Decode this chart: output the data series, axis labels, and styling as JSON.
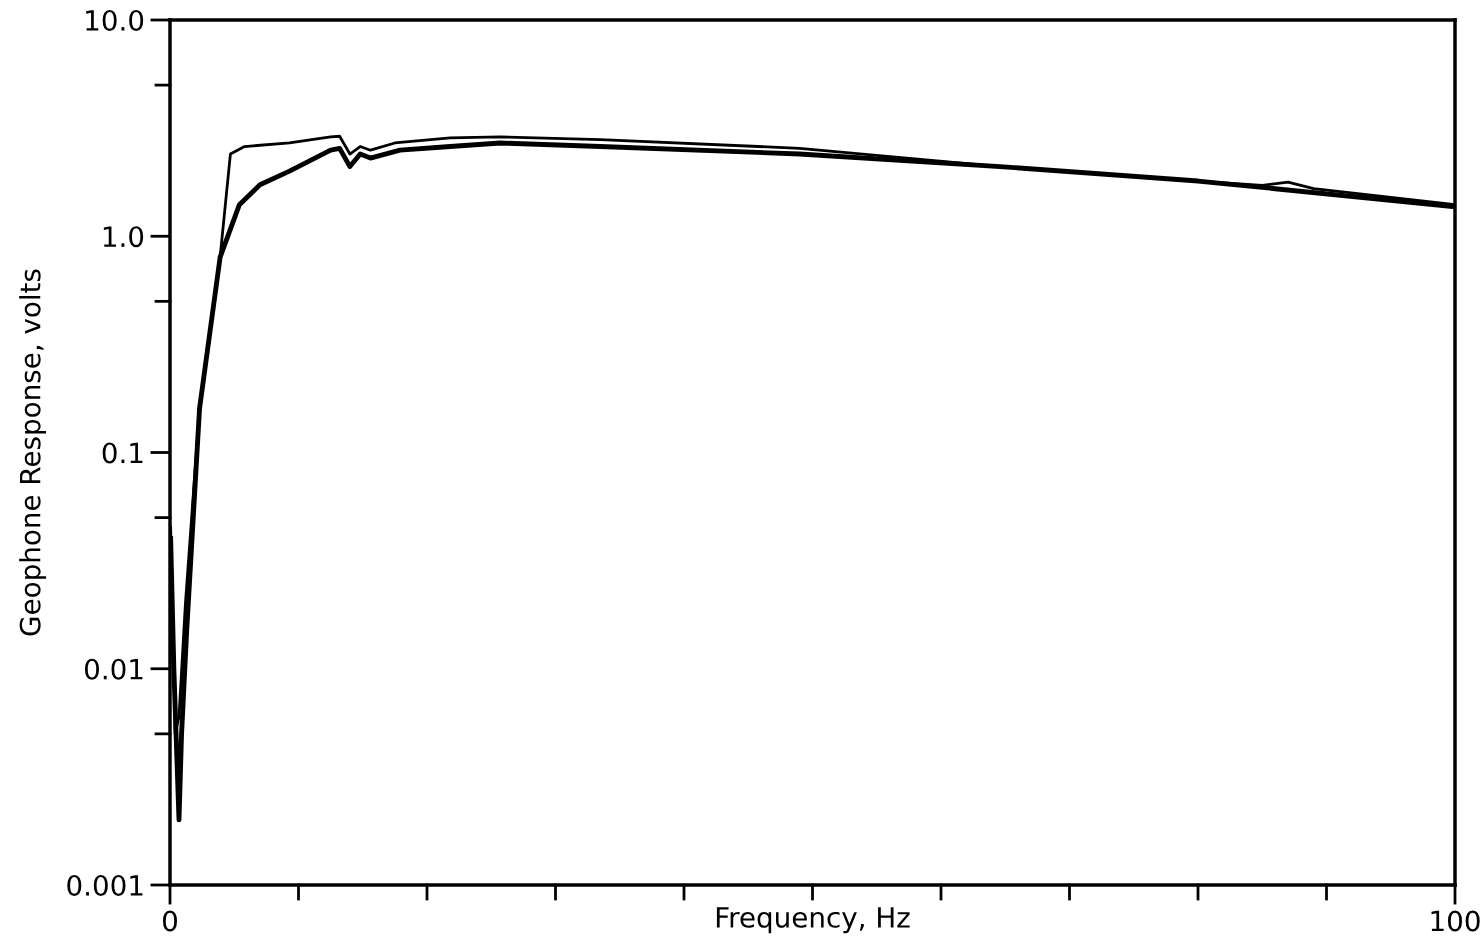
{
  "chart_data": {
    "type": "line",
    "xlabel": "Frequency, Hz",
    "ylabel": "Geophone Response, volts",
    "log": "y",
    "grid": false,
    "marker": "none",
    "line_style": "solid",
    "xlim": [
      0,
      100
    ],
    "xticks": [
      0,
      {
        "value": 10,
        "label": null
      },
      {
        "value": 20,
        "label": null
      },
      {
        "value": 30,
        "label": null
      },
      {
        "value": 40,
        "label": null
      },
      {
        "value": 50,
        "label": null
      },
      {
        "value": 60,
        "label": null
      },
      {
        "value": 70,
        "label": null
      },
      {
        "value": 80,
        "label": null
      },
      {
        "value": 90,
        "label": null
      },
      100
    ],
    "ylim": [
      0.001,
      10
    ],
    "yticks": [
      {
        "value": 0.001,
        "label": "0.001"
      },
      {
        "value": 0.005,
        "label": null
      },
      {
        "value": 0.01,
        "label": "0.01"
      },
      {
        "value": 0.05,
        "label": null
      },
      {
        "value": 0.1,
        "label": "0.1"
      },
      {
        "value": 0.5,
        "label": null
      },
      {
        "value": 1,
        "label": "1.0"
      },
      {
        "value": 5,
        "label": null
      },
      {
        "value": 10,
        "label": "10.0"
      }
    ],
    "series": [
      {
        "color": "#000000",
        "x": [
          0.05,
          0.2,
          0.4,
          0.7,
          1.2,
          2.3,
          3.9,
          4.7,
          5.8,
          9.3,
          12.5,
          13.2,
          14.0,
          14.8,
          15.6,
          17.5,
          21.8,
          25.7,
          33.5,
          49,
          64.6,
          80,
          85,
          87,
          89,
          100
        ],
        "values": [
          0.045,
          0.02,
          0.005,
          0.006,
          0.02,
          0.16,
          0.8,
          2.4,
          2.6,
          2.7,
          2.88,
          2.9,
          2.4,
          2.6,
          2.5,
          2.7,
          2.85,
          2.88,
          2.8,
          2.55,
          2.1,
          1.8,
          1.72,
          1.78,
          1.66,
          1.4
        ]
      },
      {
        "color": "#000000",
        "x": [
          0.05,
          0.3,
          0.7,
          0.9,
          1.3,
          2.3,
          3.9,
          5.4,
          7,
          9.3,
          12.5,
          13.2,
          14.0,
          14.8,
          15.6,
          17.9,
          21.8,
          25.7,
          33.5,
          49,
          64.6,
          80,
          100
        ],
        "values": [
          0.04,
          0.01,
          0.002,
          0.005,
          0.015,
          0.16,
          0.8,
          1.4,
          1.73,
          2.0,
          2.5,
          2.55,
          2.1,
          2.4,
          2.3,
          2.5,
          2.6,
          2.7,
          2.6,
          2.4,
          2.1,
          1.8,
          1.37
        ]
      }
    ]
  }
}
